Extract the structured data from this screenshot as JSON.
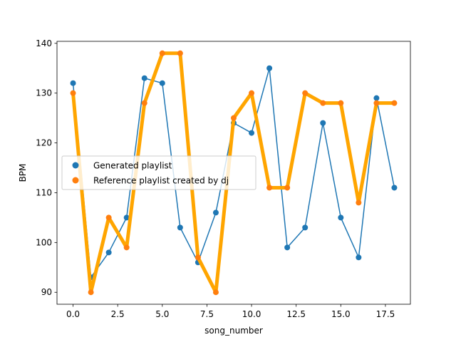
{
  "chart_data": {
    "type": "line",
    "xlabel": "song_number",
    "ylabel": "BPM",
    "xlim": [
      -0.9,
      18.9
    ],
    "ylim": [
      87.6,
      140.4
    ],
    "xticks": [
      0,
      2.5,
      5,
      7.5,
      10,
      12.5,
      15,
      17.5
    ],
    "xtick_labels": [
      "0.0",
      "2.5",
      "5.0",
      "7.5",
      "10.0",
      "12.5",
      "15.0",
      "17.5"
    ],
    "yticks": [
      90,
      100,
      110,
      120,
      130,
      140
    ],
    "ytick_labels": [
      "90",
      "100",
      "110",
      "120",
      "130",
      "140"
    ],
    "grid": false,
    "legend": {
      "position": "center-left",
      "entries": [
        "Generated playlist",
        "Reference playlist created by dj"
      ]
    },
    "x": [
      0,
      1,
      2,
      3,
      4,
      5,
      6,
      7,
      8,
      9,
      10,
      11,
      12,
      13,
      14,
      15,
      16,
      17,
      18
    ],
    "series": [
      {
        "name": "Generated playlist",
        "color": "#1f77b4",
        "line_color": "#1f77b4",
        "values": [
          132,
          93,
          98,
          105,
          133,
          132,
          103,
          96,
          106,
          124,
          122,
          135,
          99,
          103,
          124,
          105,
          97,
          129,
          111
        ]
      },
      {
        "name": "Reference playlist created by dj",
        "color": "#ff7f0e",
        "line_color": "#ffa500",
        "values": [
          130,
          90,
          105,
          99,
          128,
          138,
          138,
          97,
          90,
          125,
          130,
          111,
          111,
          130,
          128,
          128,
          108,
          128,
          128
        ]
      }
    ]
  }
}
